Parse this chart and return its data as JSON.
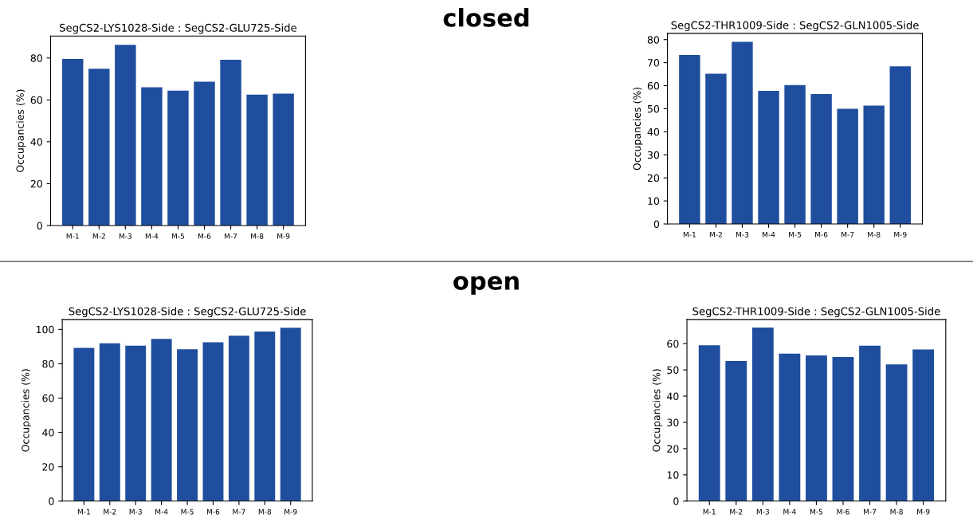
{
  "chart_data": [
    {
      "type": "bar",
      "title": "SegCS2-LYS1028-Side : SegCS2-GLU725-Side",
      "ylabel": "Occupancies (%)",
      "annotations": [
        "closed"
      ],
      "categories": [
        "M-1",
        "M-2",
        "M-3",
        "M-4",
        "M-5",
        "M-6",
        "M-7",
        "M-8",
        "M-9"
      ],
      "values": [
        79.5,
        74.9,
        86.3,
        66.0,
        64.4,
        68.7,
        79.2,
        62.5,
        63.0
      ],
      "color": "#1f4e9e",
      "ylim": [
        0,
        90.5
      ],
      "yticks": [
        0,
        20,
        40,
        60,
        80
      ]
    },
    {
      "type": "bar",
      "title": "SegCS2-THR1009-Side : SegCS2-GLN1005-Side",
      "ylabel": "Occupancies (%)",
      "categories": [
        "M-1",
        "M-2",
        "M-3",
        "M-4",
        "M-5",
        "M-6",
        "M-7",
        "M-8",
        "M-9"
      ],
      "values": [
        73.3,
        65.2,
        79.0,
        57.8,
        60.3,
        56.4,
        50.0,
        51.4,
        68.4
      ],
      "color": "#1f4e9e",
      "ylim": [
        0,
        82.7
      ],
      "yticks": [
        0,
        10,
        20,
        30,
        40,
        50,
        60,
        70,
        80
      ]
    },
    {
      "type": "bar",
      "title": "SegCS2-LYS1028-Side : SegCS2-GLU725-Side",
      "ylabel": "Occupancies (%)",
      "annotations": [
        "open"
      ],
      "categories": [
        "M-1",
        "M-2",
        "M-3",
        "M-4",
        "M-5",
        "M-6",
        "M-7",
        "M-8",
        "M-9"
      ],
      "values": [
        89.3,
        91.9,
        90.5,
        94.5,
        88.5,
        92.5,
        96.3,
        98.8,
        101.0
      ],
      "color": "#1f4e9e",
      "ylim": [
        0,
        105.8
      ],
      "yticks": [
        0,
        20,
        40,
        60,
        80,
        100
      ]
    },
    {
      "type": "bar",
      "title": "SegCS2-THR1009-Side : SegCS2-GLN1005-Side",
      "ylabel": "Occupancies (%)",
      "categories": [
        "M-1",
        "M-2",
        "M-3",
        "M-4",
        "M-5",
        "M-6",
        "M-7",
        "M-8",
        "M-9"
      ],
      "values": [
        59.4,
        53.4,
        66.1,
        56.2,
        55.5,
        54.9,
        59.2,
        52.1,
        57.8
      ],
      "color": "#1f4e9e",
      "ylim": [
        0,
        69.2
      ],
      "yticks": [
        0,
        10,
        20,
        30,
        40,
        50,
        60
      ]
    }
  ]
}
